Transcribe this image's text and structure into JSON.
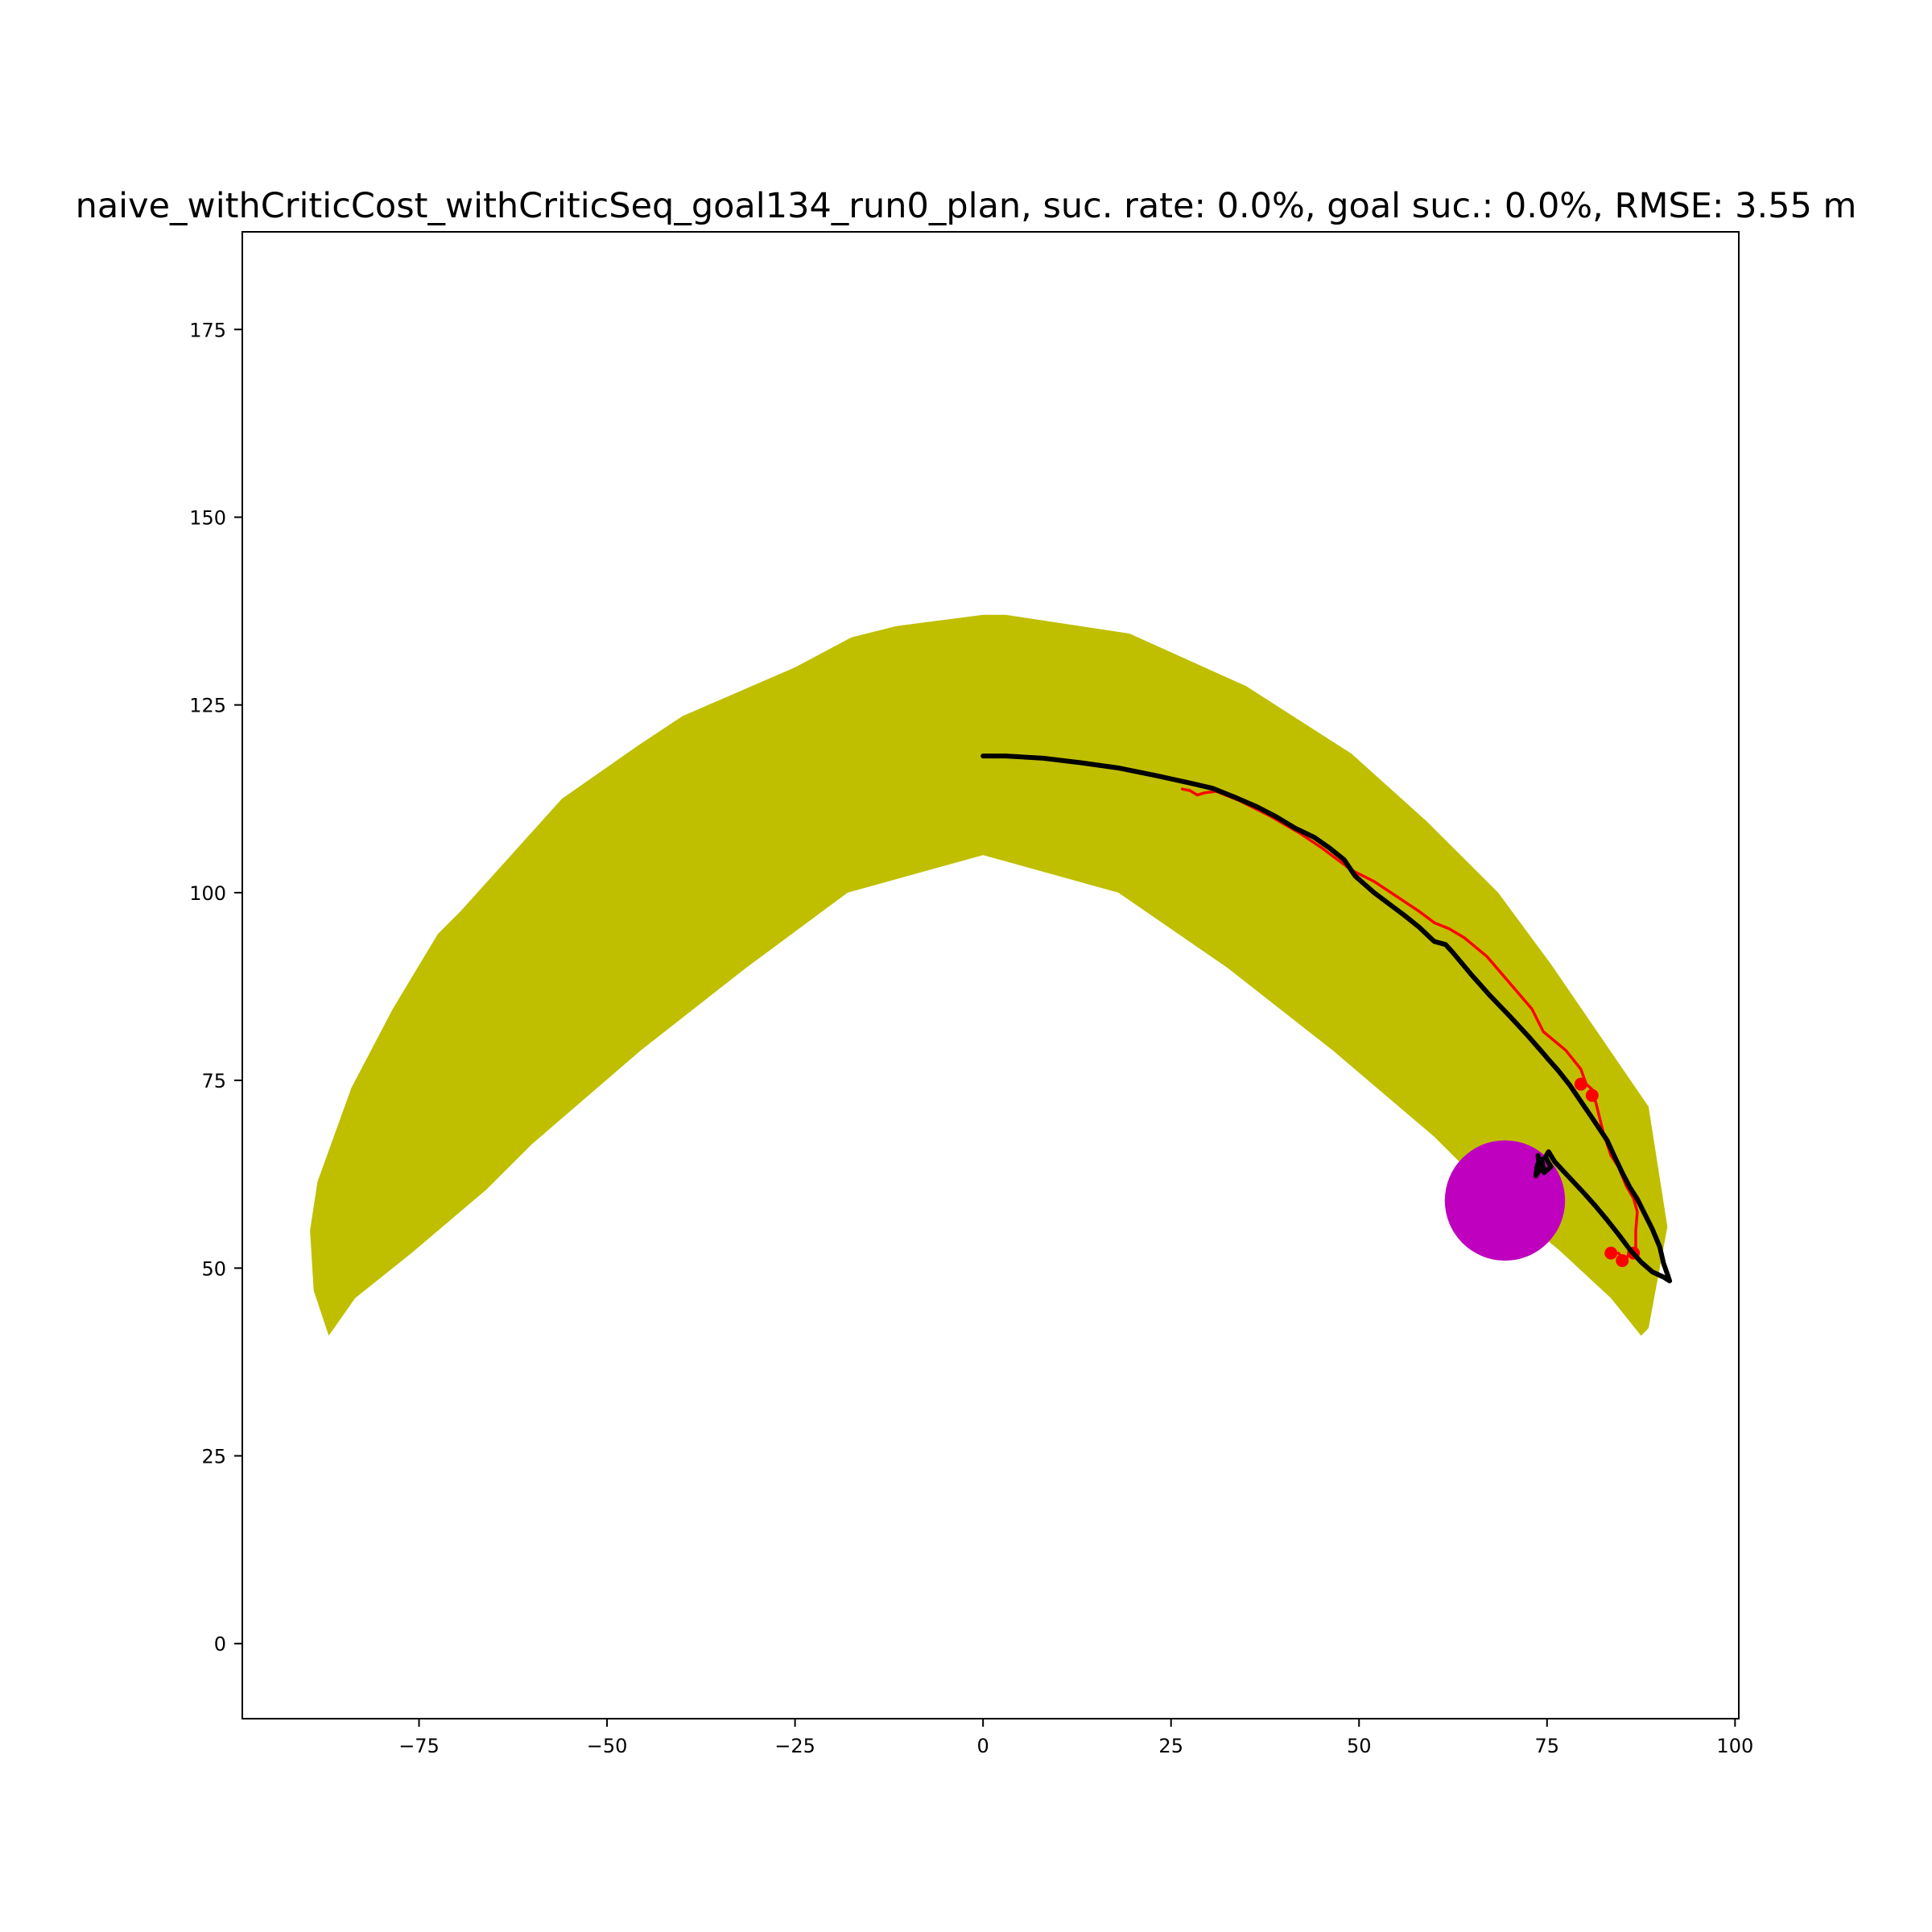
{
  "chart_data": {
    "type": "scatter",
    "title": "naive_withCriticCost_withCriticSeq_goal134_run0_plan, suc. rate: 0.0%, goal suc.: 0.0%, RMSE: 3.55 m",
    "xlabel": "",
    "ylabel": "",
    "xlim": [
      -98.5,
      100.5
    ],
    "ylim": [
      -10,
      188
    ],
    "xticks": [
      -75,
      -50,
      -25,
      0,
      25,
      50,
      75,
      100
    ],
    "xtick_labels": [
      "−75",
      "−50",
      "−25",
      "0",
      "25",
      "50",
      "75",
      "100"
    ],
    "yticks": [
      0,
      25,
      50,
      75,
      100,
      125,
      150,
      175
    ],
    "ytick_labels": [
      "0",
      "25",
      "50",
      "75",
      "100",
      "125",
      "150",
      "175"
    ],
    "grid": false,
    "colors": {
      "region": "#bfbf00",
      "goal": "#bf00bf",
      "reference": "#ff0000",
      "trajectory": "#000000"
    },
    "region_polygon": [
      [
        -87,
        41
      ],
      [
        -83.5,
        46
      ],
      [
        -76,
        52
      ],
      [
        -66,
        60.5
      ],
      [
        -60,
        66.5
      ],
      [
        -45.5,
        79
      ],
      [
        -31.5,
        90
      ],
      [
        -18,
        100
      ],
      [
        0,
        105
      ],
      [
        18,
        100
      ],
      [
        32.5,
        90
      ],
      [
        46.5,
        79
      ],
      [
        60,
        67.5
      ],
      [
        68.5,
        59
      ],
      [
        76.5,
        52.5
      ],
      [
        83.5,
        46
      ],
      [
        87.5,
        41
      ],
      [
        88.5,
        42
      ],
      [
        91,
        55.5
      ],
      [
        88.5,
        71.5
      ],
      [
        75.5,
        90.5
      ],
      [
        68.5,
        100
      ],
      [
        59,
        109.5
      ],
      [
        49,
        118.5
      ],
      [
        35,
        127.5
      ],
      [
        19.5,
        134.5
      ],
      [
        3,
        137
      ],
      [
        0,
        137
      ],
      [
        -11.5,
        135.5
      ],
      [
        -17.5,
        134
      ],
      [
        -25,
        130
      ],
      [
        -40,
        123.5
      ],
      [
        -46,
        119.5
      ],
      [
        -56,
        112.5
      ],
      [
        -69.5,
        97.5
      ],
      [
        -72.5,
        94.5
      ],
      [
        -78.5,
        84.5
      ],
      [
        -84,
        74
      ],
      [
        -88.5,
        61.5
      ],
      [
        -89.5,
        55
      ],
      [
        -89,
        47
      ],
      [
        -87,
        41
      ]
    ],
    "goal_circle": {
      "x": 69.4,
      "y": 59,
      "radius": 8
    },
    "series": [
      {
        "points": [
          [
            26.5,
            113.8
          ],
          [
            27.5,
            113.6
          ],
          [
            28.5,
            113
          ],
          [
            29.5,
            113.3
          ],
          [
            31,
            113.5
          ],
          [
            34,
            112.3
          ],
          [
            38,
            110.3
          ],
          [
            42,
            108
          ],
          [
            45,
            106
          ],
          [
            47,
            104.5
          ],
          [
            49,
            103
          ],
          [
            52,
            101.5
          ],
          [
            55,
            99.5
          ],
          [
            58,
            97.5
          ],
          [
            60,
            96
          ],
          [
            62,
            95.2
          ],
          [
            64,
            94
          ],
          [
            67,
            91.5
          ],
          [
            70,
            88
          ],
          [
            73,
            84.5
          ],
          [
            74.5,
            81.5
          ],
          [
            77.5,
            79
          ],
          [
            79.5,
            76.5
          ],
          [
            80.2,
            74.5
          ],
          [
            81,
            73.8
          ],
          [
            81.5,
            72
          ],
          [
            82.5,
            68
          ],
          [
            83.5,
            65
          ],
          [
            84.5,
            63.5
          ],
          [
            85.5,
            61
          ],
          [
            86.5,
            59.3
          ],
          [
            87,
            57.5
          ],
          [
            86.8,
            55
          ],
          [
            86.8,
            52.5
          ],
          [
            86,
            52
          ],
          [
            85.3,
            51
          ],
          [
            84.5,
            52
          ]
        ]
      },
      {
        "points": [
          [
            0,
            118.2
          ],
          [
            3,
            118.2
          ],
          [
            8,
            117.9
          ],
          [
            13,
            117.3
          ],
          [
            18,
            116.6
          ],
          [
            23,
            115.6
          ],
          [
            27.5,
            114.6
          ],
          [
            30.5,
            113.9
          ],
          [
            33.5,
            112.7
          ],
          [
            36.5,
            111.4
          ],
          [
            39,
            110.1
          ],
          [
            41.5,
            108.6
          ],
          [
            44,
            107.4
          ],
          [
            46,
            106
          ],
          [
            48,
            104.4
          ],
          [
            49.5,
            102.2
          ],
          [
            52,
            100
          ],
          [
            54,
            98.5
          ],
          [
            56,
            97
          ],
          [
            58,
            95.4
          ],
          [
            60,
            93.5
          ],
          [
            61.5,
            93.1
          ],
          [
            62.5,
            92
          ],
          [
            65,
            89
          ],
          [
            67.5,
            86.2
          ],
          [
            70,
            83.6
          ],
          [
            72.5,
            80.9
          ],
          [
            74.5,
            78.6
          ],
          [
            75,
            78
          ],
          [
            76.5,
            76.3
          ],
          [
            78,
            74.4
          ],
          [
            79.5,
            72.2
          ],
          [
            81,
            70
          ],
          [
            82,
            68.5
          ],
          [
            83,
            67
          ],
          [
            84,
            64.8
          ],
          [
            85,
            62.7
          ],
          [
            86,
            60.8
          ],
          [
            87,
            59.2
          ],
          [
            88,
            57.2
          ],
          [
            89,
            55.2
          ],
          [
            90,
            52.8
          ],
          [
            90.5,
            50.6
          ],
          [
            91,
            49.2
          ],
          [
            91.3,
            48.3
          ],
          [
            90.5,
            48.8
          ],
          [
            89,
            49.5
          ],
          [
            87.5,
            50.8
          ],
          [
            86,
            52.5
          ],
          [
            84.5,
            54.5
          ],
          [
            83,
            56.4
          ],
          [
            81.5,
            58.2
          ],
          [
            80,
            59.9
          ],
          [
            78.5,
            61.5
          ],
          [
            77,
            63.1
          ],
          [
            76,
            64.2
          ],
          [
            75.2,
            65.5
          ],
          [
            74.8,
            64.8
          ],
          [
            75.5,
            63.5
          ],
          [
            74.6,
            62.7
          ],
          [
            74.3,
            64.5
          ],
          [
            73.7,
            63.7
          ],
          [
            73.5,
            62.3
          ],
          [
            74,
            63
          ],
          [
            73.8,
            65
          ]
        ]
      }
    ],
    "reference_markers": [
      [
        79.5,
        74.5
      ],
      [
        81,
        73
      ],
      [
        83.5,
        52
      ],
      [
        85,
        51
      ],
      [
        86.5,
        52
      ]
    ]
  }
}
